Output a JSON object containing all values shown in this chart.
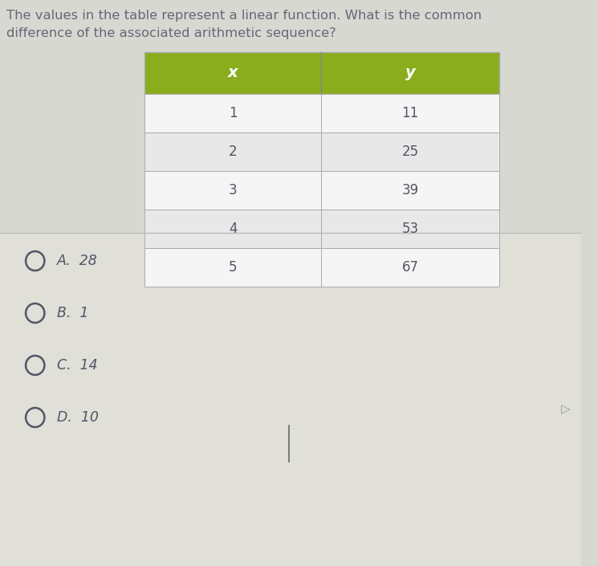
{
  "title_line1": "The values in the table represent a linear function. What is the common",
  "title_line2": "difference of the associated arithmetic sequence?",
  "col_headers": [
    "x",
    "y"
  ],
  "table_data": [
    [
      "1",
      "11"
    ],
    [
      "2",
      "25"
    ],
    [
      "3",
      "39"
    ],
    [
      "4",
      "53"
    ],
    [
      "5",
      "67"
    ]
  ],
  "choices": [
    "A.  28",
    "B.  1",
    "C.  14",
    "D.  10"
  ],
  "header_bg": "#8aad1e",
  "header_text": "#ffffff",
  "row_bg_white": "#f5f5f5",
  "row_bg_gray": "#e8e8e8",
  "upper_bg": "#d8d8d2",
  "lower_bg": "#e0dfd8",
  "table_border": "#aaaaaa",
  "text_color": "#555566",
  "title_color": "#666677",
  "choice_color": "#555566",
  "separator_color": "#bbbbbb"
}
